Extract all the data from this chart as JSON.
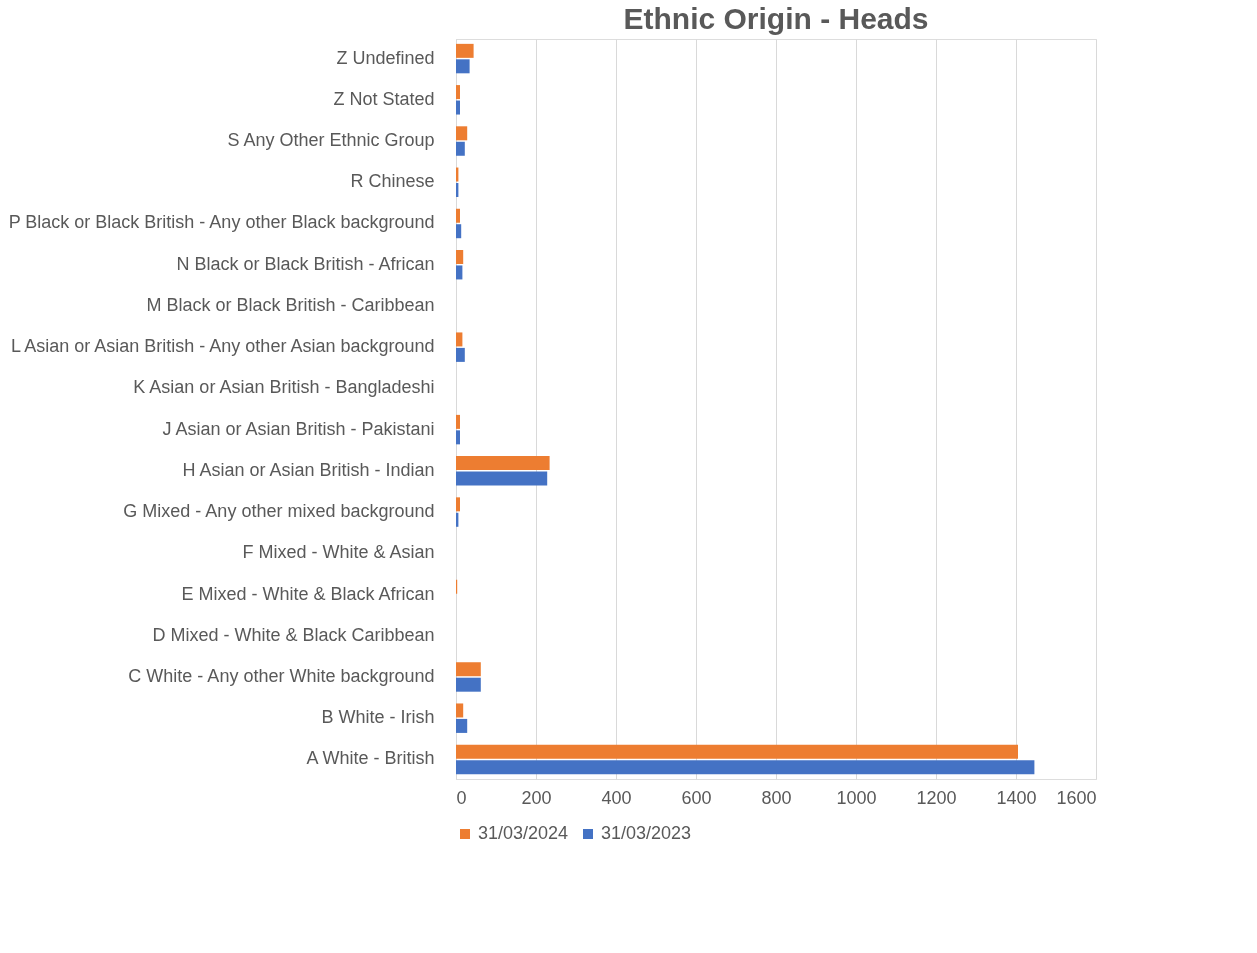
{
  "chart_data": {
    "type": "bar",
    "orientation": "horizontal",
    "title": "Ethnic Origin - Heads",
    "categories": [
      "Z Undefined",
      "Z Not Stated",
      "S Any Other Ethnic Group",
      "R Chinese",
      "P Black or Black British - Any other Black background",
      "N Black or Black British - African",
      "M Black or Black British - Caribbean",
      "L Asian or Asian British - Any other Asian background",
      "K Asian or Asian British - Bangladeshi",
      "J Asian or Asian British - Pakistani",
      "H Asian or Asian British - Indian",
      "G Mixed - Any other mixed background",
      "F Mixed - White & Asian",
      "E Mixed - White & Black African",
      "D Mixed - White & Black Caribbean",
      "C White - Any other White background",
      "B White - Irish",
      "A White - British"
    ],
    "series": [
      {
        "name": "31/03/2024",
        "color": "#ed7d31",
        "values": [
          44,
          10,
          28,
          6,
          10,
          18,
          0,
          16,
          0,
          10,
          234,
          10,
          0,
          3,
          0,
          62,
          18,
          1405
        ]
      },
      {
        "name": "31/03/2023",
        "color": "#4472c4",
        "values": [
          34,
          10,
          22,
          6,
          13,
          16,
          0,
          22,
          0,
          10,
          228,
          6,
          0,
          0,
          0,
          62,
          28,
          1446
        ]
      }
    ],
    "xlim": [
      0,
      1600
    ],
    "xticks": [
      0,
      200,
      400,
      600,
      800,
      1000,
      1200,
      1400,
      1600
    ],
    "grid": "x",
    "legend": "bottom"
  }
}
